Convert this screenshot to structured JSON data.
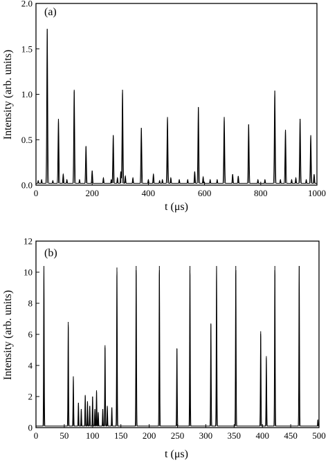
{
  "chart_data": [
    {
      "type": "line",
      "panel_label": "(a)",
      "xlabel": "t (μs)",
      "ylabel": "Intensity (arb. units)",
      "xlim": [
        0,
        1000
      ],
      "ylim": [
        0,
        2.0
      ],
      "x_ticks": [
        0,
        200,
        400,
        600,
        800,
        1000
      ],
      "y_ticks": [
        0.0,
        0.5,
        1.0,
        1.5,
        2.0
      ],
      "x_tick_labels": [
        "0",
        "200",
        "400",
        "600",
        "800",
        "1000"
      ],
      "y_tick_labels": [
        "0.0",
        "0.5",
        "1.0",
        "1.5",
        "2.0"
      ],
      "grid": false,
      "baseline": 0.02,
      "series": [
        {
          "peaks": [
            [
              8,
              0.05
            ],
            [
              20,
              0.06
            ],
            [
              40,
              1.72
            ],
            [
              60,
              0.05
            ],
            [
              80,
              0.73
            ],
            [
              97,
              0.12
            ],
            [
              110,
              0.06
            ],
            [
              136,
              1.05
            ],
            [
              155,
              0.06
            ],
            [
              178,
              0.43
            ],
            [
              200,
              0.16
            ],
            [
              240,
              0.08
            ],
            [
              268,
              0.06
            ],
            [
              275,
              0.55
            ],
            [
              290,
              0.08
            ],
            [
              302,
              0.15
            ],
            [
              308,
              1.05
            ],
            [
              318,
              0.1
            ],
            [
              345,
              0.08
            ],
            [
              375,
              0.63
            ],
            [
              400,
              0.06
            ],
            [
              418,
              0.12
            ],
            [
              440,
              0.05
            ],
            [
              450,
              0.06
            ],
            [
              468,
              0.75
            ],
            [
              480,
              0.08
            ],
            [
              510,
              0.06
            ],
            [
              540,
              0.06
            ],
            [
              565,
              0.15
            ],
            [
              578,
              0.86
            ],
            [
              595,
              0.09
            ],
            [
              620,
              0.06
            ],
            [
              645,
              0.06
            ],
            [
              670,
              0.75
            ],
            [
              700,
              0.12
            ],
            [
              720,
              0.1
            ],
            [
              757,
              0.67
            ],
            [
              790,
              0.06
            ],
            [
              815,
              0.06
            ],
            [
              850,
              1.04
            ],
            [
              870,
              0.06
            ],
            [
              888,
              0.61
            ],
            [
              910,
              0.06
            ],
            [
              925,
              0.08
            ],
            [
              940,
              0.73
            ],
            [
              962,
              0.06
            ],
            [
              978,
              0.55
            ],
            [
              990,
              0.12
            ]
          ]
        }
      ]
    },
    {
      "type": "line",
      "panel_label": "(b)",
      "xlabel": "t (μs)",
      "ylabel": "Intensity (arb. units)",
      "xlim": [
        0,
        500
      ],
      "ylim": [
        0,
        12
      ],
      "x_ticks": [
        0,
        50,
        100,
        150,
        200,
        250,
        300,
        350,
        400,
        450,
        500
      ],
      "y_ticks": [
        0,
        2,
        4,
        6,
        8,
        10,
        12
      ],
      "x_tick_labels": [
        "0",
        "50",
        "100",
        "150",
        "200",
        "250",
        "300",
        "350",
        "400",
        "450",
        "500"
      ],
      "y_tick_labels": [
        "0",
        "2",
        "4",
        "6",
        "8",
        "10",
        "12"
      ],
      "grid": false,
      "baseline": 0.1,
      "series": [
        {
          "peaks": [
            [
              14,
              10.4
            ],
            [
              57,
              6.8
            ],
            [
              66,
              3.3
            ],
            [
              75,
              1.6
            ],
            [
              80,
              1.2
            ],
            [
              87,
              2.1
            ],
            [
              91,
              1.7
            ],
            [
              95,
              1.4
            ],
            [
              100,
              2.0
            ],
            [
              104,
              1.2
            ],
            [
              107,
              2.4
            ],
            [
              110,
              1.0
            ],
            [
              118,
              1.2
            ],
            [
              122,
              5.3
            ],
            [
              126,
              1.4
            ],
            [
              134,
              1.3
            ],
            [
              143,
              10.3
            ],
            [
              177,
              10.4
            ],
            [
              218,
              10.4
            ],
            [
              249,
              5.1
            ],
            [
              272,
              10.4
            ],
            [
              309,
              6.7
            ],
            [
              319,
              10.4
            ],
            [
              353,
              10.4
            ],
            [
              397,
              6.2
            ],
            [
              407,
              4.6
            ],
            [
              422,
              10.4
            ],
            [
              465,
              10.4
            ],
            [
              498,
              0.5
            ]
          ]
        }
      ]
    }
  ]
}
